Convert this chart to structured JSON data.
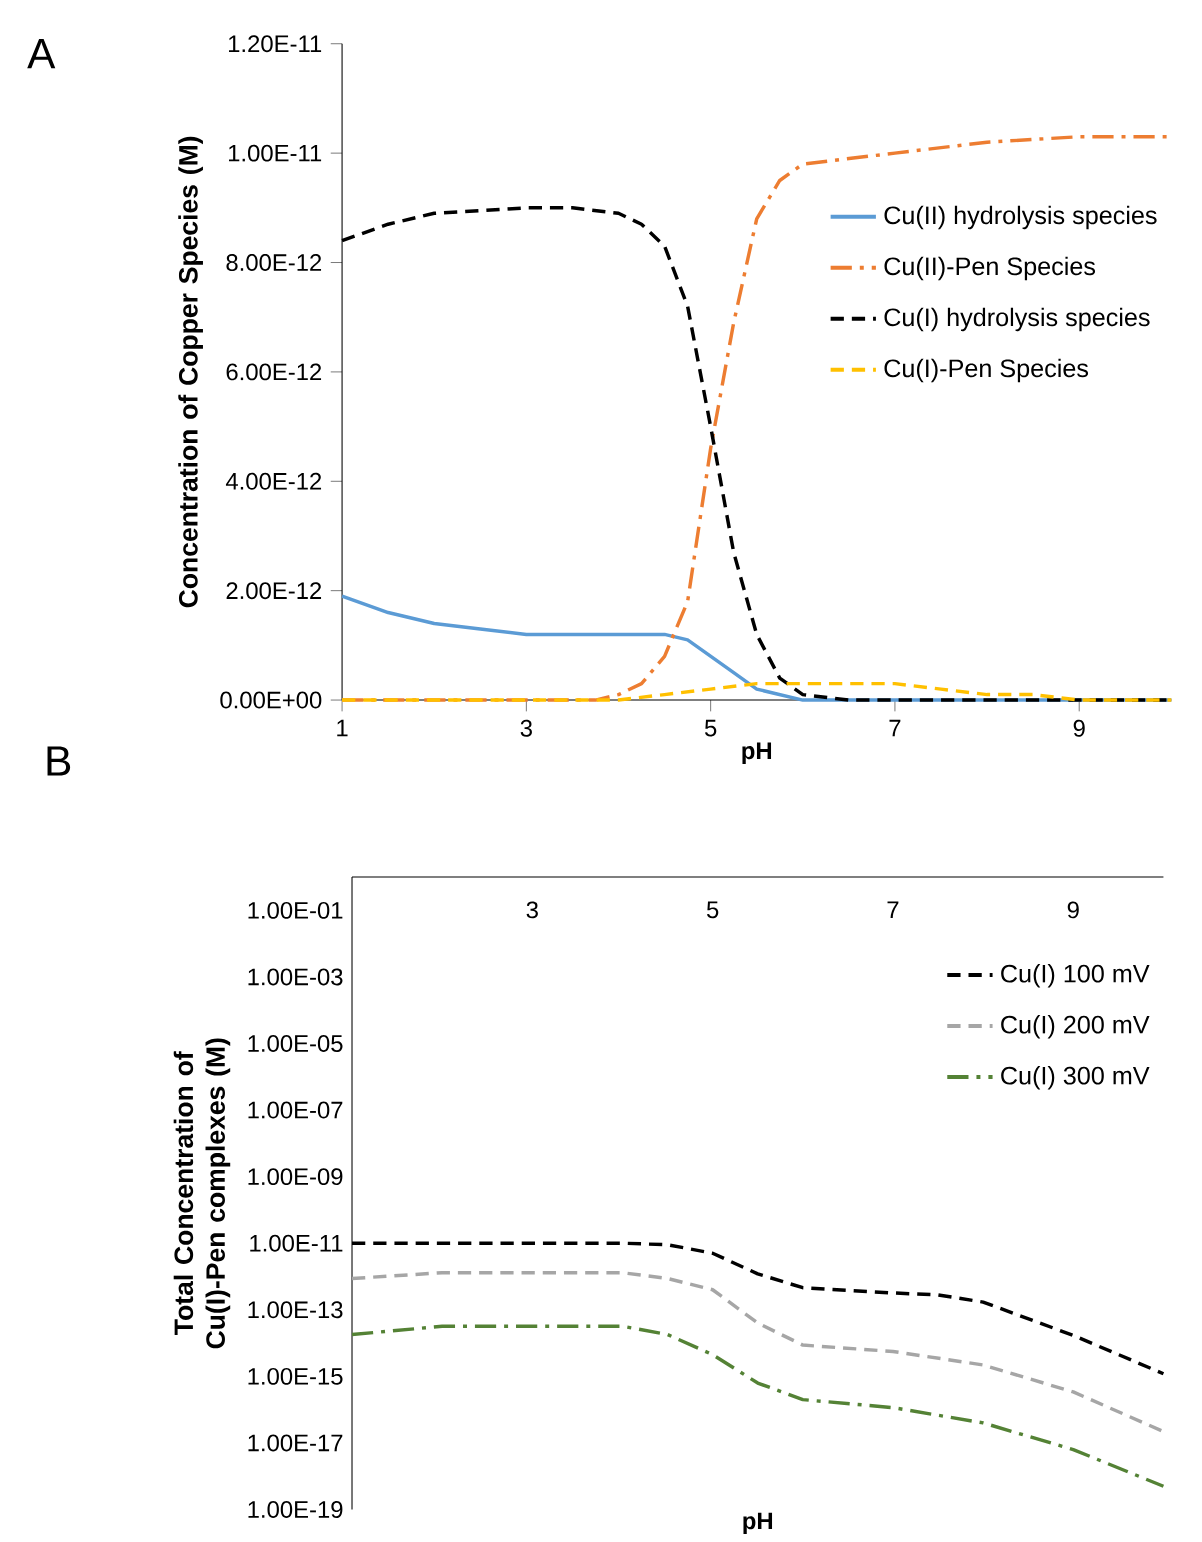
{
  "chart_data": [
    {
      "type": "line",
      "xlabel": "pH",
      "ylabel": "Concentration of Copper Species (M)",
      "annotations": [
        "A"
      ],
      "xlim": [
        1,
        10
      ],
      "xticks": [
        1,
        3,
        5,
        7,
        9
      ],
      "ylim": [
        0,
        1.2e-11
      ],
      "yticks": [
        {
          "value": 0,
          "label": "0.00E+00"
        },
        {
          "value": 2e-12,
          "label": "2.00E-12"
        },
        {
          "value": 4e-12,
          "label": "4.00E-12"
        },
        {
          "value": 6e-12,
          "label": "6.00E-12"
        },
        {
          "value": 8e-12,
          "label": "8.00E-12"
        },
        {
          "value": 1e-11,
          "label": "1.00E-11"
        },
        {
          "value": 1.2e-11,
          "label": "1.20E-11"
        }
      ],
      "legend": "right",
      "grid": false,
      "marker": "none",
      "series": [
        {
          "name": "Cu(II) hydrolysis species",
          "color": "#5b9bd5",
          "line_style": "solid",
          "x": [
            1,
            1.5,
            2,
            2.5,
            3,
            4,
            4.5,
            4.75,
            5,
            5.25,
            5.5,
            5.75,
            6,
            7,
            10
          ],
          "values": [
            1.9e-12,
            1.6e-12,
            1.4e-12,
            1.3e-12,
            1.2e-12,
            1.2e-12,
            1.2e-12,
            1.1e-12,
            8e-13,
            5e-13,
            2e-13,
            1e-13,
            0,
            0,
            0
          ]
        },
        {
          "name": "Cu(II)-Pen Species",
          "color": "#ed7d31",
          "line_style": "dashdot",
          "x": [
            1,
            3.5,
            3.75,
            4,
            4.25,
            4.5,
            4.75,
            5,
            5.25,
            5.5,
            5.75,
            6,
            7,
            8,
            9,
            10
          ],
          "values": [
            0,
            0,
            0,
            1e-13,
            3e-13,
            8e-13,
            1.8e-12,
            4.6e-12,
            6.9e-12,
            8.8e-12,
            9.5e-12,
            9.8e-12,
            1e-11,
            1.02e-11,
            1.03e-11,
            1.03e-11
          ]
        },
        {
          "name": "Cu(I) hydrolysis species",
          "color": "#000000",
          "line_style": "dashed",
          "x": [
            1,
            1.5,
            2,
            3,
            3.5,
            4,
            4.25,
            4.5,
            4.75,
            5,
            5.25,
            5.5,
            5.75,
            6,
            6.5,
            7,
            10
          ],
          "values": [
            8.4e-12,
            8.7e-12,
            8.9e-12,
            9e-12,
            9e-12,
            8.9e-12,
            8.7e-12,
            8.3e-12,
            7.2e-12,
            5e-12,
            2.7e-12,
            1.2e-12,
            4e-13,
            1e-13,
            0,
            0,
            0
          ]
        },
        {
          "name": "Cu(I)-Pen Species",
          "color": "#ffc000",
          "line_style": "dashed",
          "x": [
            1,
            4,
            4.5,
            5,
            5.5,
            6,
            7,
            7.5,
            8,
            8.5,
            9,
            10
          ],
          "values": [
            0,
            0,
            1e-13,
            2e-13,
            3e-13,
            3e-13,
            3e-13,
            2e-13,
            1e-13,
            1e-13,
            0,
            0
          ]
        }
      ]
    },
    {
      "type": "line",
      "xlabel": "pH",
      "ylabel": "Total Concentration of Cu(I)-Pen complexes (M)",
      "annotations": [
        "B"
      ],
      "log": "y",
      "xlim": [
        1,
        10
      ],
      "xticks": [
        3,
        5,
        7,
        9
      ],
      "ylim": [
        1e-19,
        1
      ],
      "yticks": [
        {
          "value": 1e-19,
          "label": "1.00E-19"
        },
        {
          "value": 1e-17,
          "label": "1.00E-17"
        },
        {
          "value": 1e-15,
          "label": "1.00E-15"
        },
        {
          "value": 1e-13,
          "label": "1.00E-13"
        },
        {
          "value": 1e-11,
          "label": "1.00E-11"
        },
        {
          "value": 1e-09,
          "label": "1.00E-09"
        },
        {
          "value": 1e-07,
          "label": "1.00E-07"
        },
        {
          "value": 1e-05,
          "label": "1.00E-05"
        },
        {
          "value": 0.001,
          "label": "1.00E-03"
        },
        {
          "value": 0.1,
          "label": "1.00E-01"
        }
      ],
      "legend": "top right",
      "grid": false,
      "marker": "none",
      "series": [
        {
          "name": "Cu(I) 100 mV",
          "color": "#000000",
          "line_style": "dashed",
          "x": [
            1,
            2,
            3,
            4,
            4.5,
            5,
            5.5,
            6,
            7,
            7.5,
            8,
            9,
            10
          ],
          "values": [
            1e-11,
            1e-11,
            1e-11,
            1e-11,
            9e-12,
            5e-12,
            1.2e-12,
            4.6e-13,
            3.2e-13,
            2.8e-13,
            1.7e-13,
            1.7e-14,
            1.2e-15
          ]
        },
        {
          "name": "Cu(I) 200 mV",
          "color": "#a6a6a6",
          "line_style": "dashed",
          "x": [
            1,
            2,
            3,
            4,
            4.5,
            5,
            5.5,
            6,
            7,
            8,
            9,
            10
          ],
          "values": [
            8.7e-13,
            1.3e-12,
            1.3e-12,
            1.3e-12,
            8.7e-13,
            4e-13,
            4e-14,
            8.7e-15,
            5.6e-15,
            2.2e-15,
            3.4e-16,
            2.2e-17
          ]
        },
        {
          "name": "Cu(I) 300 mV",
          "color": "#548235",
          "line_style": "dashdot",
          "x": [
            1,
            2,
            3,
            4,
            4.5,
            5,
            5.5,
            6,
            7,
            8,
            9,
            10
          ],
          "values": [
            1.8e-14,
            3.2e-14,
            3.2e-14,
            3.2e-14,
            1.8e-14,
            4.5e-15,
            6.3e-16,
            2e-16,
            1.15e-16,
            4e-17,
            6.3e-18,
            5e-19
          ]
        }
      ]
    }
  ]
}
